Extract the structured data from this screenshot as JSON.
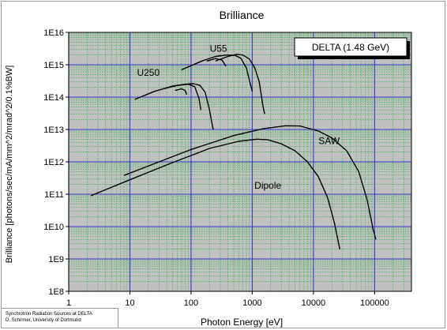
{
  "chart_data": {
    "type": "line",
    "title": "Brilliance",
    "xlabel": "Photon Energy [eV]",
    "ylabel": "Brilliance [photons/sec/mA/mm^2/mrad^2/0.1%BW]",
    "x_scale": "log",
    "y_scale": "log",
    "xlim": [
      1,
      400000
    ],
    "ylim": [
      100000000.0,
      1e+16
    ],
    "grid": true,
    "x_ticks": [
      {
        "value": 1,
        "label": "1"
      },
      {
        "value": 10,
        "label": "10"
      },
      {
        "value": 100,
        "label": "100"
      },
      {
        "value": 1000,
        "label": "1000"
      },
      {
        "value": 10000,
        "label": "10000"
      },
      {
        "value": 100000,
        "label": "100000"
      }
    ],
    "y_ticks": [
      {
        "value": 100000000.0,
        "label": "1E8"
      },
      {
        "value": 1000000000.0,
        "label": "1E9"
      },
      {
        "value": 10000000000.0,
        "label": "1E10"
      },
      {
        "value": 100000000000.0,
        "label": "1E11"
      },
      {
        "value": 1000000000000.0,
        "label": "1E12"
      },
      {
        "value": 10000000000000.0,
        "label": "1E13"
      },
      {
        "value": 100000000000000.0,
        "label": "1E14"
      },
      {
        "value": 1000000000000000.0,
        "label": "1E15"
      },
      {
        "value": 1e+16,
        "label": "1E16"
      }
    ],
    "annotation_box": "DELTA (1.48 GeV)",
    "curve_labels": [
      {
        "text": "U55",
        "x": 280,
        "y": 2500000000000000.0
      },
      {
        "text": "U250",
        "x": 20,
        "y": 450000000000000.0
      },
      {
        "text": "SAW",
        "x": 18000,
        "y": 3500000000000.0
      },
      {
        "text": "Dipole",
        "x": 1800,
        "y": 150000000000.0
      }
    ],
    "series": [
      {
        "points": [
          [
            2.3,
            90000000000.0
          ],
          [
            10,
            280000000000.0
          ],
          [
            50,
            950000000000.0
          ],
          [
            200,
            2600000000000.0
          ],
          [
            600,
            4300000000000.0
          ],
          [
            1200,
            5000000000000.0
          ],
          [
            1800,
            4800000000000.0
          ],
          [
            3000,
            3600000000000.0
          ],
          [
            5000,
            2200000000000.0
          ],
          [
            8000,
            1000000000000.0
          ],
          [
            12000,
            350000000000.0
          ],
          [
            17000,
            80000000000.0
          ],
          [
            22000,
            13000000000.0
          ],
          [
            27000,
            2000000000.0
          ]
        ]
      },
      {
        "points": [
          [
            8,
            380000000000.0
          ],
          [
            30,
            1000000000000.0
          ],
          [
            100,
            2400000000000.0
          ],
          [
            500,
            6500000000000.0
          ],
          [
            1500,
            10500000000000.0
          ],
          [
            3500,
            13000000000000.0
          ],
          [
            6000,
            12800000000000.0
          ],
          [
            12000,
            9000000000000.0
          ],
          [
            20000,
            5500000000000.0
          ],
          [
            35000,
            2200000000000.0
          ],
          [
            55000,
            500000000000.0
          ],
          [
            75000,
            70000000000.0
          ],
          [
            95000,
            8000000000.0
          ],
          [
            105000,
            4000000000.0
          ]
        ]
      },
      {
        "points": [
          [
            12,
            85000000000000.0
          ],
          [
            25,
            150000000000000.0
          ],
          [
            50,
            220000000000000.0
          ],
          [
            80,
            250000000000000.0
          ],
          [
            110,
            260000000000000.0
          ],
          [
            140,
            230000000000000.0
          ],
          [
            170,
            140000000000000.0
          ],
          [
            200,
            40000000000000.0
          ],
          [
            220,
            15000000000000.0
          ],
          [
            230,
            10000000000000.0
          ]
        ]
      },
      {
        "points": [
          [
            35,
            180000000000000.0
          ],
          [
            60,
            230000000000000.0
          ],
          [
            90,
            250000000000000.0
          ],
          [
            115,
            210000000000000.0
          ],
          [
            135,
            90000000000000.0
          ],
          [
            145,
            40000000000000.0
          ]
        ]
      },
      {
        "points": [
          [
            55,
            160000000000000.0
          ],
          [
            70,
            180000000000000.0
          ],
          [
            80,
            160000000000000.0
          ],
          [
            85,
            120000000000000.0
          ]
        ]
      },
      {
        "points": [
          [
            70,
            700000000000000.0
          ],
          [
            150,
            1300000000000000.0
          ],
          [
            250,
            1800000000000000.0
          ],
          [
            380,
            2000000000000000.0
          ],
          [
            520,
            1950000000000000.0
          ],
          [
            650,
            1600000000000000.0
          ],
          [
            800,
            800000000000000.0
          ],
          [
            1000,
            150000000000000.0
          ]
        ]
      },
      {
        "points": [
          [
            250,
            1300000000000000.0
          ],
          [
            400,
            1800000000000000.0
          ],
          [
            550,
            2100000000000000.0
          ],
          [
            700,
            2000000000000000.0
          ],
          [
            900,
            1500000000000000.0
          ],
          [
            1100,
            800000000000000.0
          ],
          [
            1300,
            300000000000000.0
          ],
          [
            1500,
            50000000000000.0
          ],
          [
            1600,
            30000000000000.0
          ]
        ]
      },
      {
        "points": [
          [
            180,
            1300000000000000.0
          ],
          [
            250,
            1550000000000000.0
          ],
          [
            320,
            1400000000000000.0
          ],
          [
            370,
            900000000000000.0
          ]
        ]
      }
    ]
  },
  "footer": {
    "line1": "Synchrotron Radiation Sources at DELTA",
    "line2": "D. Schirmer, University of Dortmund"
  },
  "colors": {
    "plot_background": "#c0c0c0",
    "minor_grid": "#2fb344",
    "major_grid": "#3a3acc",
    "curve": "#000000"
  }
}
